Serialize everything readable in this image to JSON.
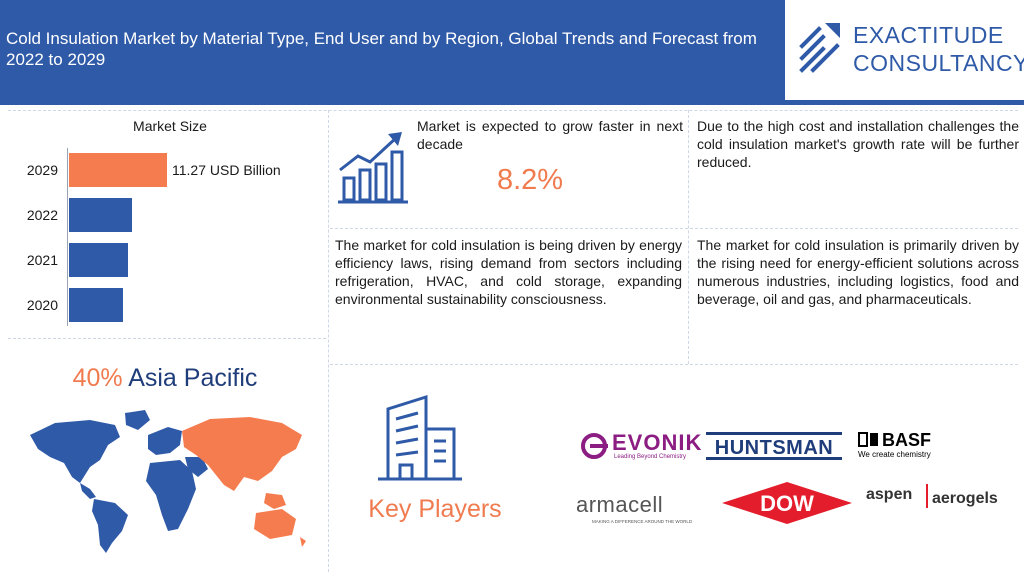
{
  "header": {
    "title": "Cold Insulation Market by Material Type, End User and by Region, Global Trends and Forecast from 2022 to 2029"
  },
  "logo": {
    "line1": "EXACTITUDE",
    "line2": "CONSULTANCY",
    "icon": "upward-arrows-icon"
  },
  "market_size": {
    "title": "Market Size",
    "highlight_value": "11.27 USD Billion",
    "bars": [
      {
        "year": "2029",
        "value": 11.27,
        "color": "#f57c4e"
      },
      {
        "year": "2022",
        "value": 7.29,
        "color": "#2f5aa8"
      },
      {
        "year": "2021",
        "value": 6.75,
        "color": "#2f5aa8"
      },
      {
        "year": "2020",
        "value": 6.24,
        "color": "#2f5aa8"
      }
    ]
  },
  "growth": {
    "text": "Market is expected to grow faster in next decade",
    "value": "8.2%",
    "icon": "bar-growth-chart-icon"
  },
  "insights": {
    "challenge": "Due to the high cost and installation challenges the cold insulation market's growth rate will be further reduced.",
    "driver1": "The market for cold insulation is being driven by energy efficiency laws, rising demand from sectors including refrigeration, HVAC, and cold storage, expanding environmental sustainability consciousness.",
    "driver2": "The market for cold insulation is primarily driven by the rising need for energy-efficient solutions across numerous industries, including logistics, food and beverage, oil and gas, and pharmaceuticals."
  },
  "region": {
    "share": "40%",
    "name": "Asia Pacific",
    "icon": "world-map-icon"
  },
  "key_players": {
    "label": "Key Players",
    "icon": "office-building-icon",
    "brands": [
      {
        "name": "EVONIK",
        "tagline": "Leading Beyond Chemistry",
        "color": "#8c1d82"
      },
      {
        "name": "HUNTSMAN",
        "color": "#1f3d7a"
      },
      {
        "name": "BASF",
        "tagline": "We create chemistry",
        "color": "#000000"
      },
      {
        "name": "armacell",
        "tagline": "MAKING A DIFFERENCE AROUND THE WORLD",
        "color": "#555555"
      },
      {
        "name": "DOW",
        "color": "#e31d2b"
      },
      {
        "name": "aspen",
        "name2": "aerogels",
        "color": "#333333"
      }
    ]
  }
}
